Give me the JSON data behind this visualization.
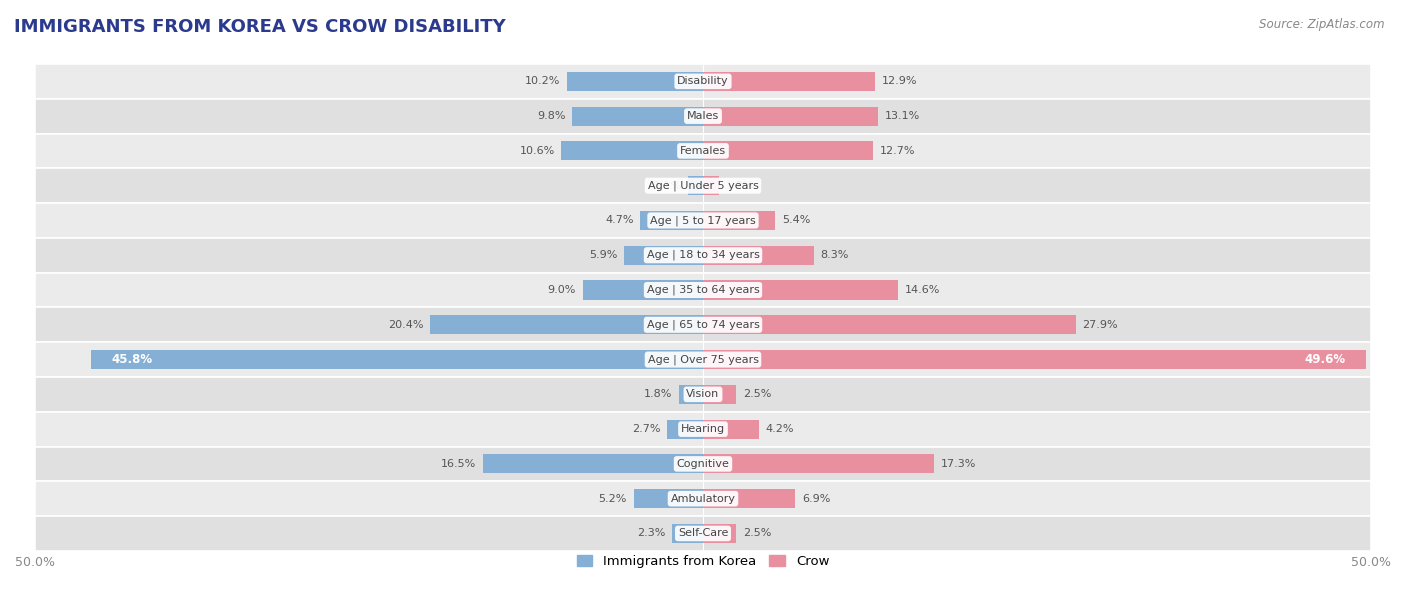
{
  "title": "IMMIGRANTS FROM KOREA VS CROW DISABILITY",
  "source": "Source: ZipAtlas.com",
  "categories": [
    "Disability",
    "Males",
    "Females",
    "Age | Under 5 years",
    "Age | 5 to 17 years",
    "Age | 18 to 34 years",
    "Age | 35 to 64 years",
    "Age | 65 to 74 years",
    "Age | Over 75 years",
    "Vision",
    "Hearing",
    "Cognitive",
    "Ambulatory",
    "Self-Care"
  ],
  "korea_values": [
    10.2,
    9.8,
    10.6,
    1.1,
    4.7,
    5.9,
    9.0,
    20.4,
    45.8,
    1.8,
    2.7,
    16.5,
    5.2,
    2.3
  ],
  "crow_values": [
    12.9,
    13.1,
    12.7,
    1.2,
    5.4,
    8.3,
    14.6,
    27.9,
    49.6,
    2.5,
    4.2,
    17.3,
    6.9,
    2.5
  ],
  "korea_color": "#85afd4",
  "crow_color": "#e88fa0",
  "korea_color_dark": "#5a8fc0",
  "crow_color_dark": "#d4607a",
  "axis_max": 50.0,
  "bar_height": 0.55,
  "legend_korea": "Immigrants from Korea",
  "legend_crow": "Crow",
  "row_colors": [
    "#ebebeb",
    "#e0e0e0"
  ]
}
